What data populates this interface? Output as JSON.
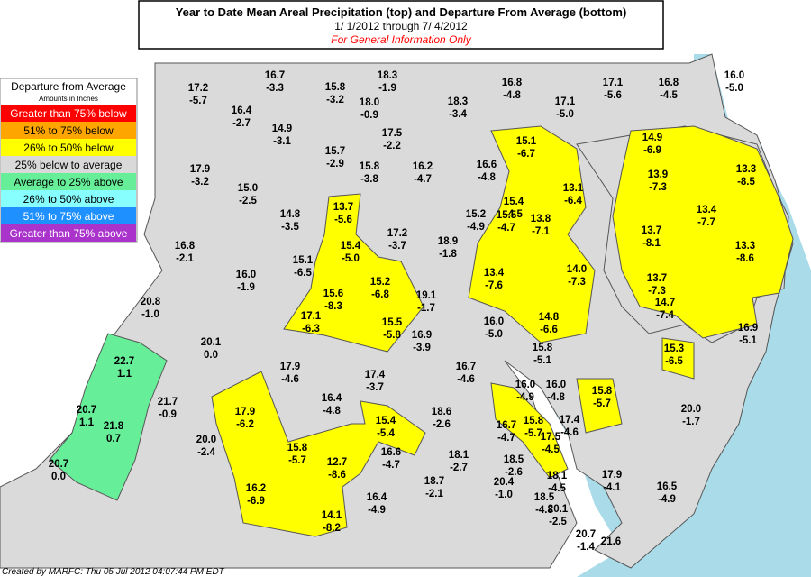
{
  "header": {
    "title": "Year to Date Mean Areal Precipitation (top) and Departure From Average (bottom)",
    "period": "1/ 1/2012 through  7/ 4/2012",
    "note": "For General Information Only"
  },
  "legend": {
    "title": "Departure from Average",
    "subtitle": "Amounts in Inches",
    "items": [
      {
        "label": "Greater than 75% below",
        "color": "#ff0000"
      },
      {
        "label": "51% to 75% below",
        "color": "#ffa500"
      },
      {
        "label": "26% to 50% below",
        "color": "#ffff00"
      },
      {
        "label": "25% below to average",
        "color": "#d9d9d9"
      },
      {
        "label": "Average to 25% above",
        "color": "#66ee99"
      },
      {
        "label": "26% to 50% above",
        "color": "#88ffff"
      },
      {
        "label": "51% to 75% above",
        "color": "#1e90ff"
      },
      {
        "label": "Greater than 75% above",
        "color": "#aa33cc"
      }
    ]
  },
  "regions": [
    [
      "16.7",
      "-3.3"
    ],
    [
      "18.3",
      "-1.9"
    ],
    [
      "15.8",
      "-3.2"
    ],
    [
      "18.0",
      "-0.9"
    ],
    [
      "17.2",
      "-5.7"
    ],
    [
      "16.4",
      "-2.7"
    ],
    [
      "14.9",
      "-3.1"
    ],
    [
      "16.8",
      "-4.8"
    ],
    [
      "17.1",
      "-5.6"
    ],
    [
      "16.8",
      "-4.5"
    ],
    [
      "16.0",
      "-5.0"
    ],
    [
      "18.3",
      "-3.4"
    ],
    [
      "17.1",
      "-5.0"
    ],
    [
      "15.7",
      "-2.9"
    ],
    [
      "17.5",
      "-2.2"
    ],
    [
      "15.1",
      "-6.7"
    ],
    [
      "14.9",
      "-6.9"
    ],
    [
      "17.9",
      "-3.2"
    ],
    [
      "15.8",
      "-3.8"
    ],
    [
      "16.2",
      "-4.7"
    ],
    [
      "16.6",
      "-4.8"
    ],
    [
      "13.1",
      "-6.4"
    ],
    [
      "13.9",
      "-7.3"
    ],
    [
      "13.3",
      "-8.5"
    ],
    [
      "15.0",
      "-2.5"
    ],
    [
      "13.7",
      "-5.6"
    ],
    [
      "14.8",
      "-3.5"
    ],
    [
      "15.2",
      "-4.9"
    ],
    [
      "15.4",
      "-4.5"
    ],
    [
      "15.5",
      "-4.7"
    ],
    [
      "13.8",
      "-7.1"
    ],
    [
      "13.4",
      "-7.7"
    ],
    [
      "13.7",
      "-8.1"
    ],
    [
      "13.3",
      "-8.6"
    ],
    [
      "17.2",
      "-3.7"
    ],
    [
      "15.4",
      "-5.0"
    ],
    [
      "18.9",
      "-1.8"
    ],
    [
      "16.8",
      "-2.1"
    ],
    [
      "15.1",
      "-6.5"
    ],
    [
      "15.2",
      "-6.8"
    ],
    [
      "15.6",
      "-8.3"
    ],
    [
      "16.0",
      "-1.9"
    ],
    [
      "13.4",
      "-7.6"
    ],
    [
      "14.0",
      "-7.3"
    ],
    [
      "13.7",
      "-7.3"
    ],
    [
      "19.1",
      "-1.7"
    ],
    [
      "20.8",
      "-1.0"
    ],
    [
      "17.1",
      "-6.3"
    ],
    [
      "15.5",
      "-5.8"
    ],
    [
      "16.0",
      "-5.0"
    ],
    [
      "14.8",
      "-6.6"
    ],
    [
      "14.7",
      "-7.4"
    ],
    [
      "16.9",
      "-3.9"
    ],
    [
      "16.9",
      "-5.1"
    ],
    [
      "20.1",
      "0.0"
    ],
    [
      "15.8",
      "-5.1"
    ],
    [
      "15.3",
      "-6.5"
    ],
    [
      "22.7",
      "1.1"
    ],
    [
      "17.9",
      "-4.6"
    ],
    [
      "17.4",
      "-3.7"
    ],
    [
      "16.7",
      "-4.6"
    ],
    [
      "16.0",
      "-4.9"
    ],
    [
      "16.0",
      "-4.8"
    ],
    [
      "15.8",
      "-5.7"
    ],
    [
      "16.4",
      "-4.8"
    ],
    [
      "18.6",
      "-2.6"
    ],
    [
      "20.0",
      "-1.7"
    ],
    [
      "20.7",
      "1.1"
    ],
    [
      "21.7",
      "-0.9"
    ],
    [
      "17.9",
      "-6.2"
    ],
    [
      "15.4",
      "-5.4"
    ],
    [
      "16.7",
      "-4.7"
    ],
    [
      "15.8",
      "-5.7"
    ],
    [
      "17.4",
      "-4.6"
    ],
    [
      "17.5",
      "-4.5"
    ],
    [
      "20.0",
      "-2.4"
    ],
    [
      "21.8",
      "0.7"
    ],
    [
      "15.8",
      "-5.7"
    ],
    [
      "12.7",
      "-8.6"
    ],
    [
      "16.6",
      "-4.7"
    ],
    [
      "18.1",
      "-2.7"
    ],
    [
      "18.5",
      "-2.6"
    ],
    [
      "20.7",
      "0.0"
    ],
    [
      "18.7",
      "-2.1"
    ],
    [
      "20.4",
      "-1.0"
    ],
    [
      "18.1",
      "-4.5"
    ],
    [
      "17.9",
      "-4.1"
    ],
    [
      "16.5",
      "-4.9"
    ],
    [
      "16.2",
      "-6.9"
    ],
    [
      "16.4",
      "-4.9"
    ],
    [
      "18.5",
      "-4.8"
    ],
    [
      "14.1",
      "-8.2"
    ],
    [
      "20.1",
      "-2.5"
    ],
    [
      "20.7",
      "-1.4"
    ],
    [
      "21.6"
    ]
  ],
  "footer": "Created by MARFC: Thu 05 Jul 2012 04:07:44 PM EDT"
}
